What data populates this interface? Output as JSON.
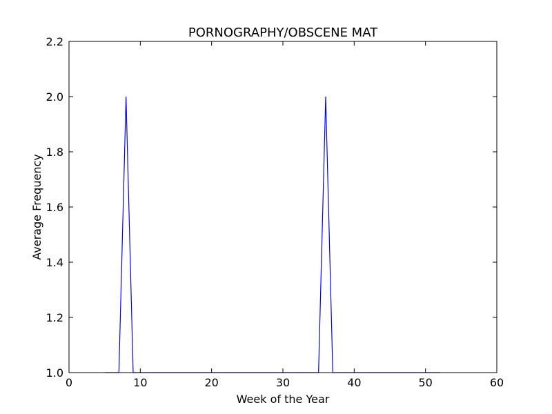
{
  "chart_data": {
    "type": "line",
    "title": "PORNOGRAPHY/OBSCENE MAT",
    "xlabel": "Week of the Year",
    "ylabel": "Average Frequency",
    "xlim": [
      0,
      60
    ],
    "ylim": [
      1.0,
      2.2
    ],
    "xticks": [
      0,
      10,
      20,
      30,
      40,
      50,
      60
    ],
    "xtick_labels": [
      "0",
      "10",
      "20",
      "30",
      "40",
      "50",
      "60"
    ],
    "yticks": [
      1.0,
      1.2,
      1.4,
      1.6,
      1.8,
      2.0,
      2.2
    ],
    "ytick_labels": [
      "1.0",
      "1.2",
      "1.4",
      "1.6",
      "1.8",
      "2.0",
      "2.2"
    ],
    "grid": false,
    "series": [
      {
        "color": "#0000ff",
        "x": [
          5,
          6,
          7,
          8,
          9,
          10,
          11,
          12,
          13,
          14,
          15,
          16,
          17,
          18,
          19,
          20,
          21,
          22,
          23,
          24,
          25,
          26,
          27,
          28,
          29,
          30,
          31,
          32,
          33,
          34,
          35,
          36,
          37,
          38,
          39,
          40,
          41,
          42,
          43,
          44,
          45,
          46,
          47,
          48,
          49,
          50,
          51,
          52
        ],
        "y": [
          1,
          1,
          1,
          2,
          1,
          1,
          1,
          1,
          1,
          1,
          1,
          1,
          1,
          1,
          1,
          1,
          1,
          1,
          1,
          1,
          1,
          1,
          1,
          1,
          1,
          1,
          1,
          1,
          1,
          1,
          1,
          2,
          1,
          1,
          1,
          1,
          1,
          1,
          1,
          1,
          1,
          1,
          1,
          1,
          1,
          1,
          1,
          1
        ]
      }
    ]
  }
}
